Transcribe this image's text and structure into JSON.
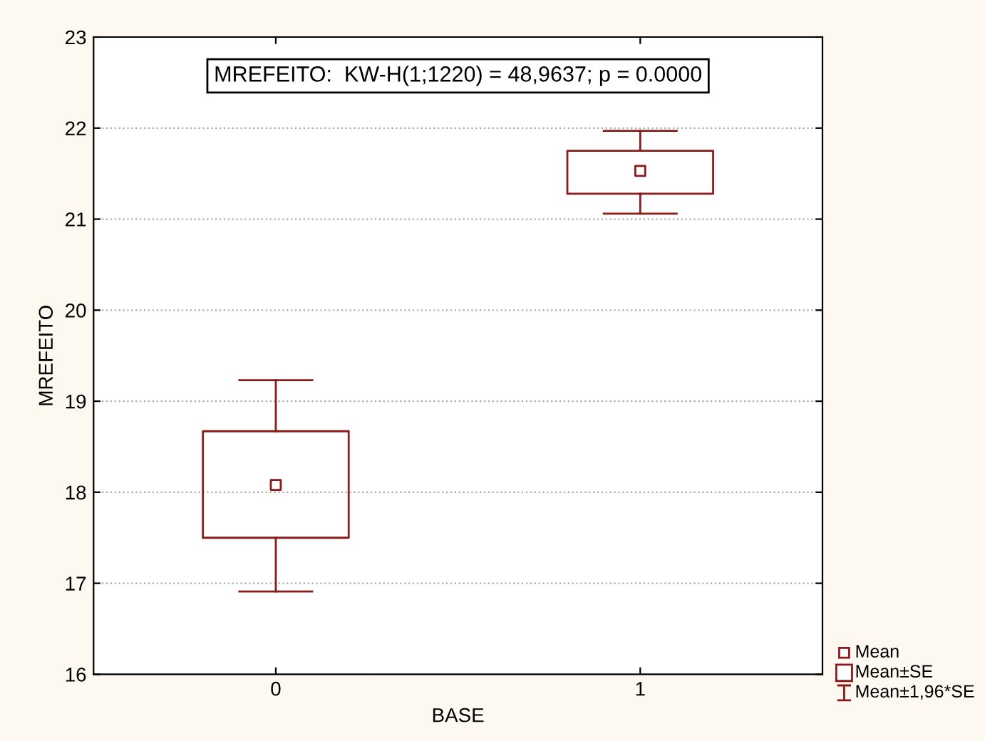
{
  "chart_data": {
    "type": "box",
    "xlabel": "BASE",
    "ylabel": "MREFEITO",
    "categories": [
      "0",
      "1"
    ],
    "color": "#8b1a1a",
    "boxes": [
      {
        "low": 16.91,
        "q1": 17.5,
        "median": 18.08,
        "q3": 18.67,
        "high": 19.23
      },
      {
        "low": 21.06,
        "q1": 21.28,
        "median": 21.53,
        "q3": 21.75,
        "high": 21.97
      }
    ],
    "ylim": [
      16,
      23
    ],
    "yticks": [
      16,
      17,
      18,
      19,
      20,
      21,
      22,
      23
    ],
    "grid": "y",
    "marker": "square",
    "annotations": [
      "MREFEITO:  KW-H(1;1220) = 48,9637; p = 0.0000",
      "Mean",
      "Mean±SE",
      "Mean±1,96*SE"
    ]
  }
}
